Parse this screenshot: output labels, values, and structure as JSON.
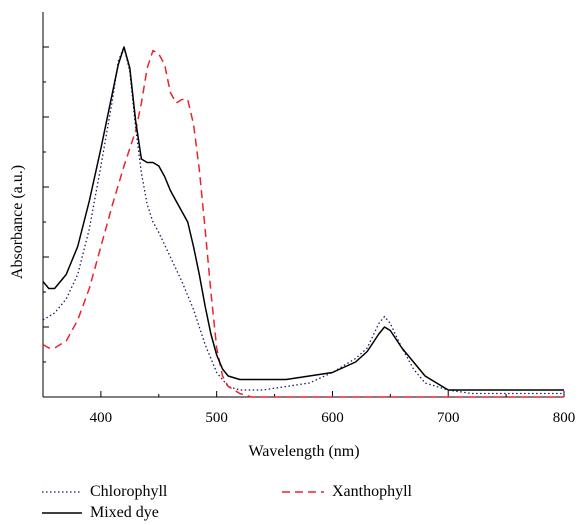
{
  "chart_data": {
    "type": "line",
    "xlabel": "Wavelength (nm)",
    "ylabel": "Absorbance (a.u.)",
    "xlim": [
      350,
      800
    ],
    "ylim": [
      0,
      1.0
    ],
    "x_ticks": [
      400,
      500,
      600,
      700,
      800
    ],
    "y_tick_labels_shown": false,
    "grid": false,
    "legend_position": "bottom",
    "series": [
      {
        "name": "Chlorophyll",
        "style": "dotted",
        "color": "#1a1a66",
        "x": [
          350,
          360,
          370,
          380,
          390,
          400,
          410,
          415,
          420,
          425,
          430,
          435,
          440,
          445,
          450,
          460,
          470,
          480,
          490,
          500,
          510,
          520,
          540,
          560,
          580,
          600,
          620,
          630,
          640,
          645,
          650,
          660,
          670,
          680,
          700,
          720,
          750,
          800
        ],
        "values": [
          0.22,
          0.24,
          0.28,
          0.35,
          0.48,
          0.66,
          0.85,
          0.96,
          1.0,
          0.93,
          0.77,
          0.64,
          0.55,
          0.5,
          0.47,
          0.4,
          0.33,
          0.25,
          0.15,
          0.07,
          0.03,
          0.02,
          0.02,
          0.03,
          0.04,
          0.07,
          0.11,
          0.14,
          0.21,
          0.23,
          0.21,
          0.14,
          0.08,
          0.04,
          0.02,
          0.01,
          0.01,
          0.01
        ]
      },
      {
        "name": "Xanthophyll",
        "style": "dashed",
        "color": "#e8242e",
        "x": [
          350,
          355,
          360,
          370,
          380,
          390,
          400,
          410,
          420,
          430,
          435,
          440,
          445,
          450,
          455,
          460,
          465,
          470,
          475,
          480,
          485,
          490,
          495,
          500,
          505,
          510,
          520,
          530,
          540,
          560,
          600,
          700,
          800
        ],
        "values": [
          0.15,
          0.14,
          0.14,
          0.16,
          0.22,
          0.31,
          0.43,
          0.55,
          0.66,
          0.76,
          0.84,
          0.94,
          0.99,
          0.98,
          0.95,
          0.87,
          0.84,
          0.85,
          0.85,
          0.78,
          0.65,
          0.48,
          0.3,
          0.14,
          0.06,
          0.03,
          0.01,
          0.0,
          0.0,
          0.0,
          0.0,
          0.0,
          0.0
        ]
      },
      {
        "name": "Mixed dye",
        "style": "solid",
        "color": "#000000",
        "x": [
          350,
          355,
          360,
          370,
          380,
          390,
          400,
          410,
          415,
          420,
          425,
          430,
          435,
          440,
          445,
          450,
          455,
          460,
          465,
          470,
          475,
          480,
          485,
          490,
          495,
          500,
          505,
          510,
          520,
          530,
          540,
          560,
          580,
          600,
          620,
          630,
          640,
          645,
          650,
          660,
          670,
          680,
          690,
          700,
          720,
          750,
          800
        ],
        "values": [
          0.33,
          0.31,
          0.31,
          0.35,
          0.43,
          0.56,
          0.71,
          0.87,
          0.95,
          1.0,
          0.94,
          0.79,
          0.68,
          0.67,
          0.67,
          0.66,
          0.63,
          0.59,
          0.56,
          0.53,
          0.5,
          0.43,
          0.35,
          0.26,
          0.18,
          0.12,
          0.08,
          0.06,
          0.05,
          0.05,
          0.05,
          0.05,
          0.06,
          0.07,
          0.1,
          0.13,
          0.18,
          0.2,
          0.19,
          0.14,
          0.1,
          0.06,
          0.04,
          0.02,
          0.02,
          0.02,
          0.02
        ]
      }
    ]
  }
}
